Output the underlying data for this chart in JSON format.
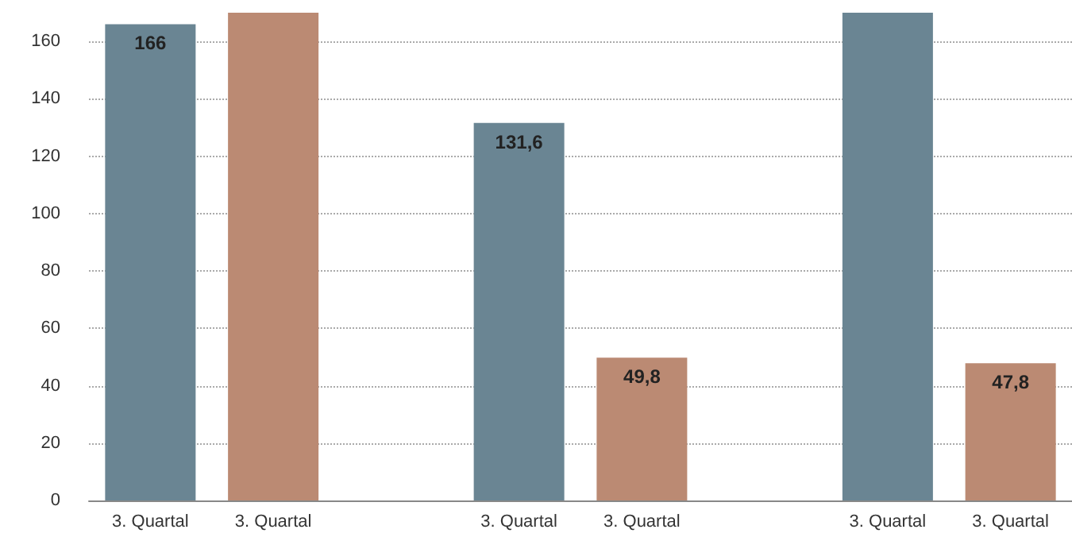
{
  "chart_data": {
    "type": "bar",
    "categories": [
      "3. Quartal",
      "3. Quartal",
      null,
      "3. Quartal",
      "3. Quartal",
      null,
      "3. Quartal",
      "3. Quartal"
    ],
    "values": [
      166,
      170,
      null,
      131.6,
      49.8,
      null,
      170,
      47.8
    ],
    "colors": [
      "#6a8593",
      "#bb8a73",
      null,
      "#6a8593",
      "#bb8a73",
      null,
      "#6a8593",
      "#bb8a73"
    ],
    "value_labels": [
      "166",
      null,
      null,
      "131,6",
      "49,8",
      null,
      null,
      "47,8"
    ],
    "ylim": [
      0,
      170
    ],
    "yticks": [
      0,
      20,
      40,
      60,
      80,
      100,
      120,
      140,
      160
    ],
    "grid": "y"
  }
}
